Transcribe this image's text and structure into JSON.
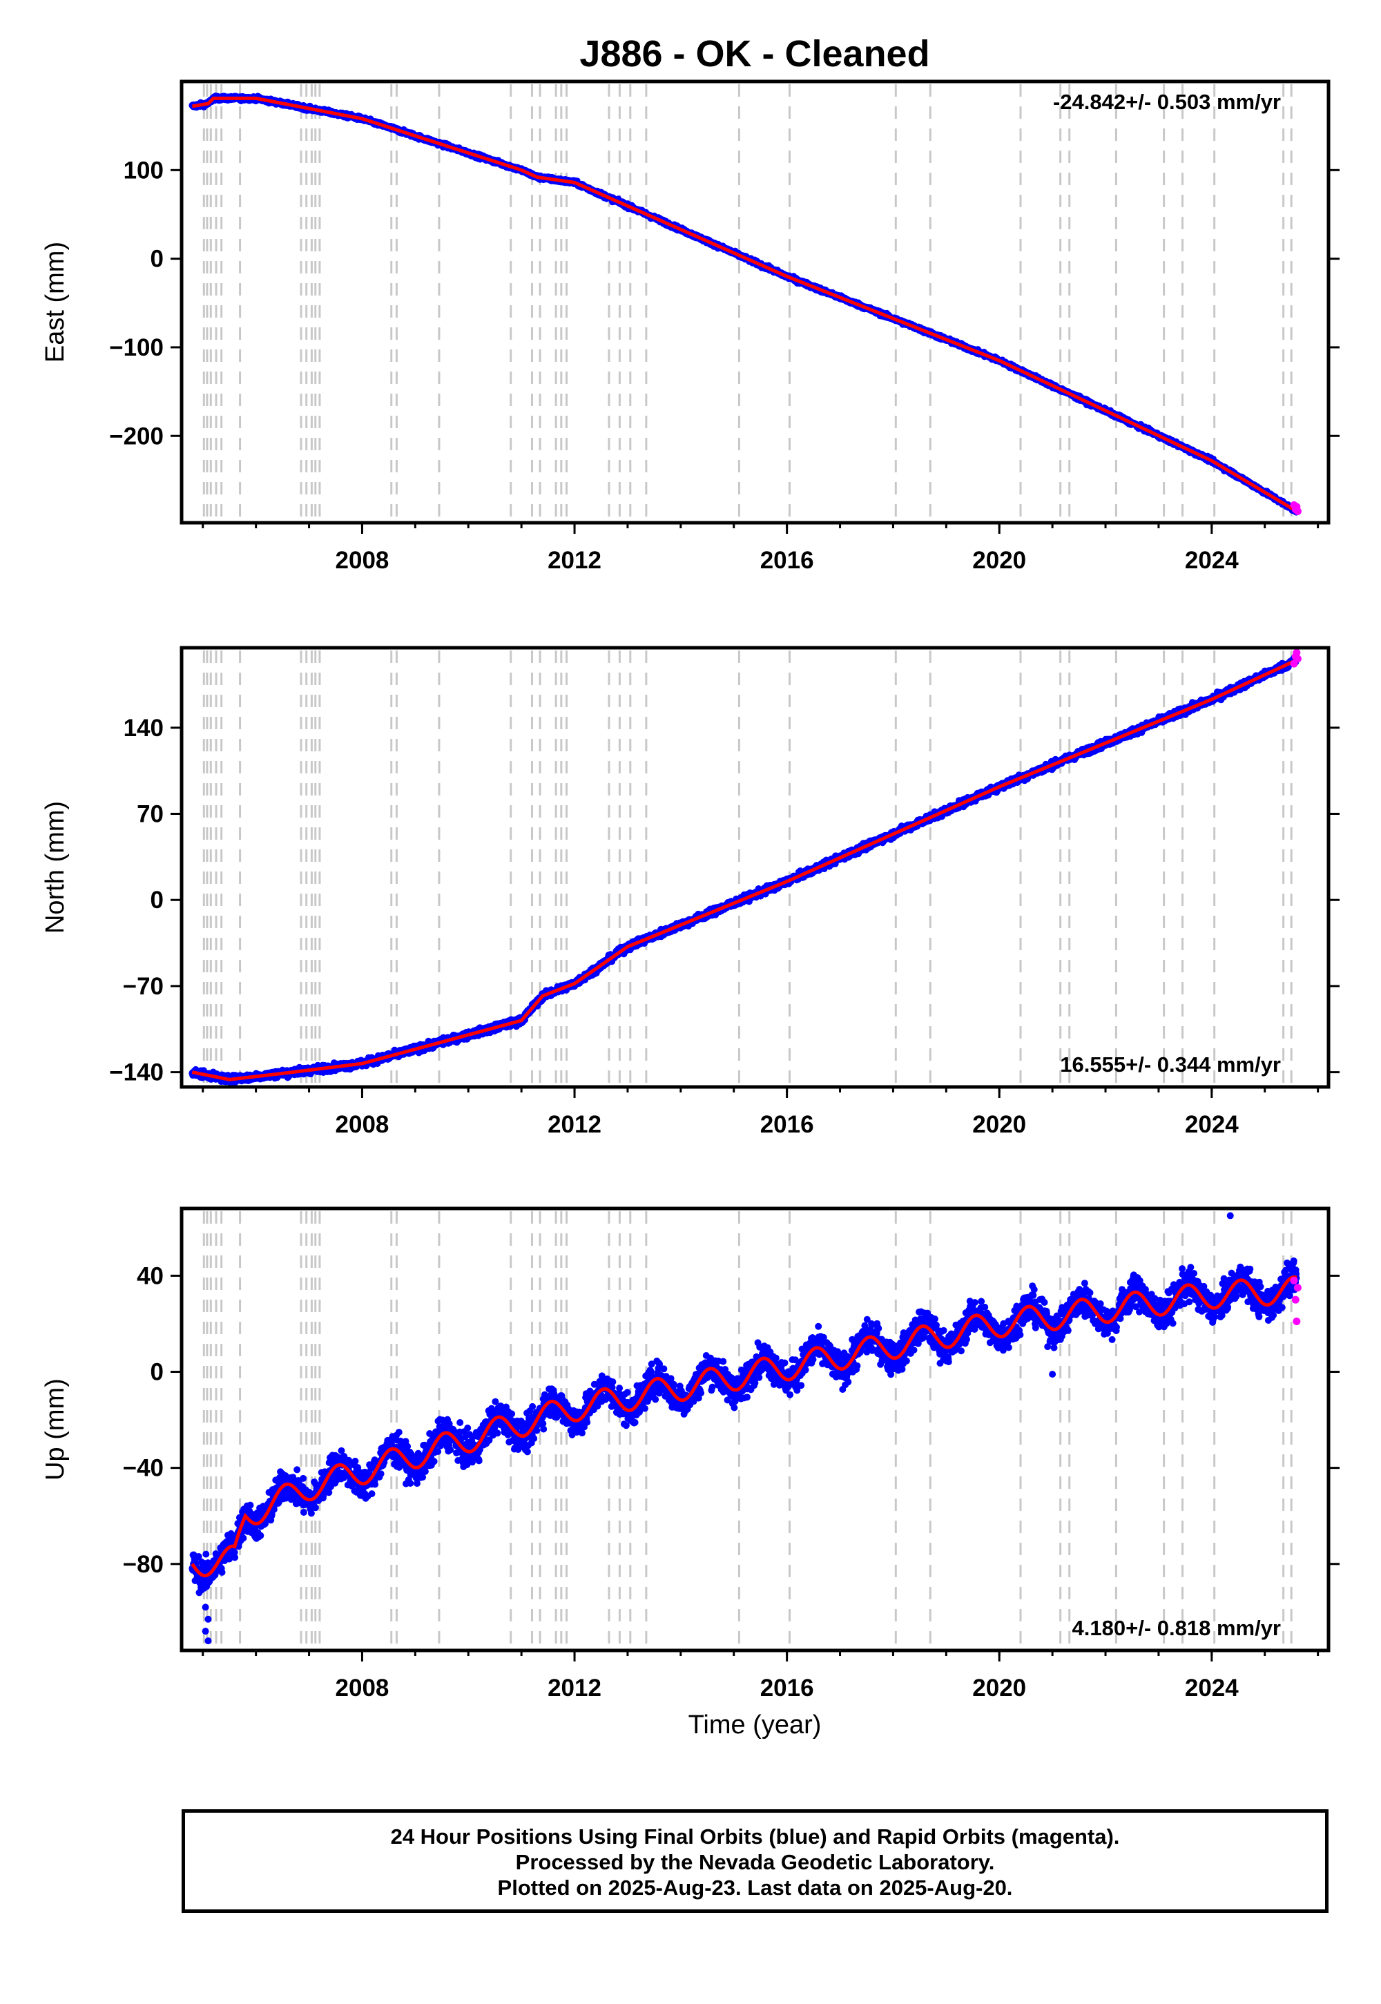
{
  "title": "J886  - OK - Cleaned",
  "x_axis_label": "Time (year)",
  "footer": {
    "line1": "24 Hour Positions Using Final Orbits (blue) and Rapid Orbits (magenta).",
    "line2": "Processed by the Nevada Geodetic Laboratory.",
    "line3": "Plotted on 2025-Aug-23. Last data on 2025-Aug-20."
  },
  "colors": {
    "final_orbits": "#0000ff",
    "rapid_orbits": "#ff00ff",
    "model_fit": "#ff0000",
    "event_lines": "#c8c8c8",
    "axes": "#000000"
  },
  "chart_data": [
    {
      "type": "scatter",
      "ylabel": "East (mm)",
      "rate_text": "-24.842+/- 0.503 mm/yr",
      "rate_position": "top-right",
      "xlim": [
        2004.6,
        2026.2
      ],
      "ylim": [
        -298,
        200
      ],
      "x_ticks": [
        2008,
        2012,
        2016,
        2020,
        2024
      ],
      "y_ticks": [
        -200,
        -100,
        0,
        100
      ],
      "y_tick_labels": [
        "−200",
        "−100",
        "0",
        "100"
      ],
      "x_tick_labels": [
        "2008",
        "2012",
        "2016",
        "2020",
        "2024"
      ],
      "fit_anchors": [
        [
          2004.8,
          172
        ],
        [
          2005.1,
          175
        ],
        [
          2005.2,
          181
        ],
        [
          2006.0,
          181
        ],
        [
          2008.0,
          158
        ],
        [
          2011.0,
          100
        ],
        [
          2011.3,
          92
        ],
        [
          2012.0,
          86
        ],
        [
          2016.0,
          -20
        ],
        [
          2020.0,
          -115
        ],
        [
          2024.0,
          -228
        ],
        [
          2025.6,
          -285
        ]
      ],
      "noise_amplitude": 2.2,
      "rapid_points": [
        [
          2025.55,
          -278
        ],
        [
          2025.58,
          -283
        ],
        [
          2025.6,
          -280
        ],
        [
          2025.62,
          -285
        ]
      ]
    },
    {
      "type": "scatter",
      "ylabel": "North (mm)",
      "rate_text": "16.555+/- 0.344 mm/yr",
      "rate_position": "bottom-right",
      "xlim": [
        2004.6,
        2026.2
      ],
      "ylim": [
        -152,
        205
      ],
      "x_ticks": [
        2008,
        2012,
        2016,
        2020,
        2024
      ],
      "y_ticks": [
        -140,
        -70,
        0,
        70,
        140
      ],
      "y_tick_labels": [
        "−140",
        "−70",
        "0",
        "70",
        "140"
      ],
      "x_tick_labels": [
        "2008",
        "2012",
        "2016",
        "2020",
        "2024"
      ],
      "fit_anchors": [
        [
          2004.8,
          -140
        ],
        [
          2005.5,
          -146
        ],
        [
          2006.5,
          -141
        ],
        [
          2008.0,
          -133
        ],
        [
          2011.0,
          -98
        ],
        [
          2011.2,
          -88
        ],
        [
          2011.4,
          -78
        ],
        [
          2012.0,
          -68
        ],
        [
          2013.0,
          -38
        ],
        [
          2016.0,
          15
        ],
        [
          2020.0,
          92
        ],
        [
          2024.0,
          163
        ],
        [
          2025.6,
          195
        ]
      ],
      "noise_amplitude": 2.8,
      "rapid_points": [
        [
          2025.55,
          192
        ],
        [
          2025.58,
          198
        ],
        [
          2025.6,
          201
        ],
        [
          2025.62,
          196
        ]
      ]
    },
    {
      "type": "scatter",
      "ylabel": "Up (mm)",
      "rate_text": "4.180+/- 0.818 mm/yr",
      "rate_position": "bottom-right",
      "xlim": [
        2004.6,
        2026.2
      ],
      "ylim": [
        -116,
        68
      ],
      "x_ticks": [
        2008,
        2012,
        2016,
        2020,
        2024
      ],
      "y_ticks": [
        -80,
        -40,
        0,
        40
      ],
      "y_tick_labels": [
        "−80",
        "−40",
        "0",
        "40"
      ],
      "x_tick_labels": [
        "2008",
        "2012",
        "2016",
        "2020",
        "2024"
      ],
      "fit_anchors": [
        [
          2004.8,
          -80
        ],
        [
          2005.6,
          -78
        ],
        [
          2005.8,
          -60
        ],
        [
          2007.0,
          -48
        ],
        [
          2010.0,
          -28
        ],
        [
          2012.0,
          -15
        ],
        [
          2016.0,
          2
        ],
        [
          2020.0,
          20
        ],
        [
          2024.0,
          32
        ],
        [
          2025.6,
          34
        ]
      ],
      "seasonal_amplitude": 5.5,
      "noise_amplitude": 6.5,
      "rapid_points": [
        [
          2025.55,
          38
        ],
        [
          2025.58,
          30
        ],
        [
          2025.6,
          21
        ],
        [
          2025.62,
          35
        ]
      ],
      "outlier_points": [
        [
          2005.05,
          -98
        ],
        [
          2005.1,
          -103
        ],
        [
          2005.05,
          -108
        ],
        [
          2005.1,
          -112
        ],
        [
          2024.35,
          65
        ],
        [
          2021.0,
          -1
        ]
      ]
    }
  ],
  "event_lines_years": [
    2005.02,
    2005.08,
    2005.15,
    2005.25,
    2005.35,
    2005.7,
    2006.85,
    2006.95,
    2007.05,
    2007.12,
    2007.2,
    2008.55,
    2008.65,
    2009.45,
    2010.8,
    2011.2,
    2011.35,
    2011.65,
    2011.75,
    2011.85,
    2012.65,
    2012.85,
    2013.05,
    2013.35,
    2015.1,
    2016.05,
    2018.05,
    2018.7,
    2020.4,
    2021.15,
    2021.32,
    2022.2,
    2023.1,
    2023.45,
    2024.05,
    2025.35,
    2025.5
  ]
}
